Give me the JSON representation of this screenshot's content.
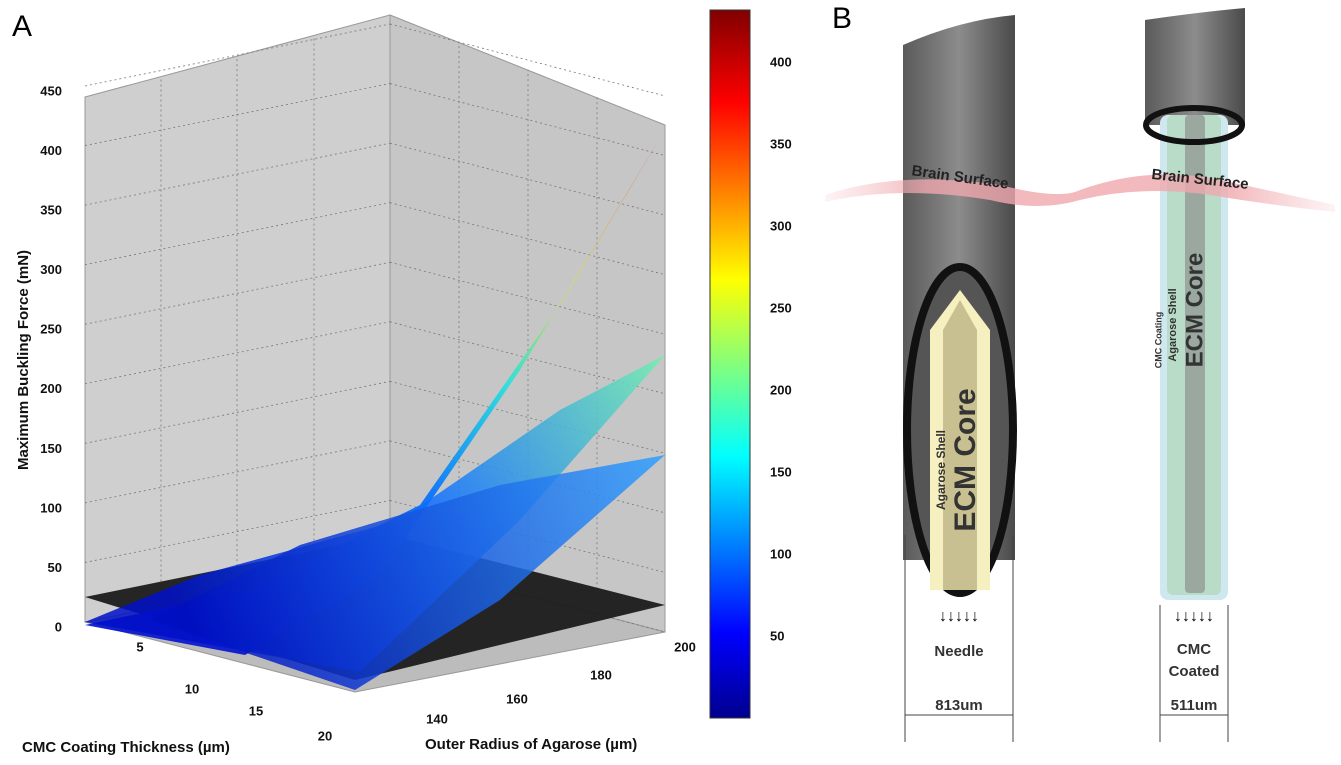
{
  "panel_a": {
    "label": "A",
    "z_axis": {
      "title": "Maximum Buckling Force (mN)",
      "ticks": [
        0,
        50,
        100,
        150,
        200,
        250,
        300,
        350,
        400,
        450
      ]
    },
    "x_axis": {
      "title": "CMC Coating Thickness (µm)",
      "ticks": [
        5,
        10,
        15,
        20
      ]
    },
    "y_axis": {
      "title": "Outer Radius of Agarose (µm)",
      "ticks": [
        140,
        160,
        180,
        200
      ]
    },
    "colorbar": {
      "ticks": [
        50,
        100,
        150,
        200,
        250,
        300,
        350,
        400
      ]
    }
  },
  "panel_b": {
    "label": "B",
    "brain_surface": [
      "Brain Surface",
      "Brain Surface"
    ],
    "needle": {
      "shell": "Agarose Shell",
      "core": "ECM Core",
      "caption": "Needle",
      "width": "813um"
    },
    "coated": {
      "coating": "CMC Coating",
      "shell": "Agarose Shell",
      "core": "ECM Core",
      "caption": [
        "CMC",
        "Coated"
      ],
      "width": "511um"
    }
  }
}
